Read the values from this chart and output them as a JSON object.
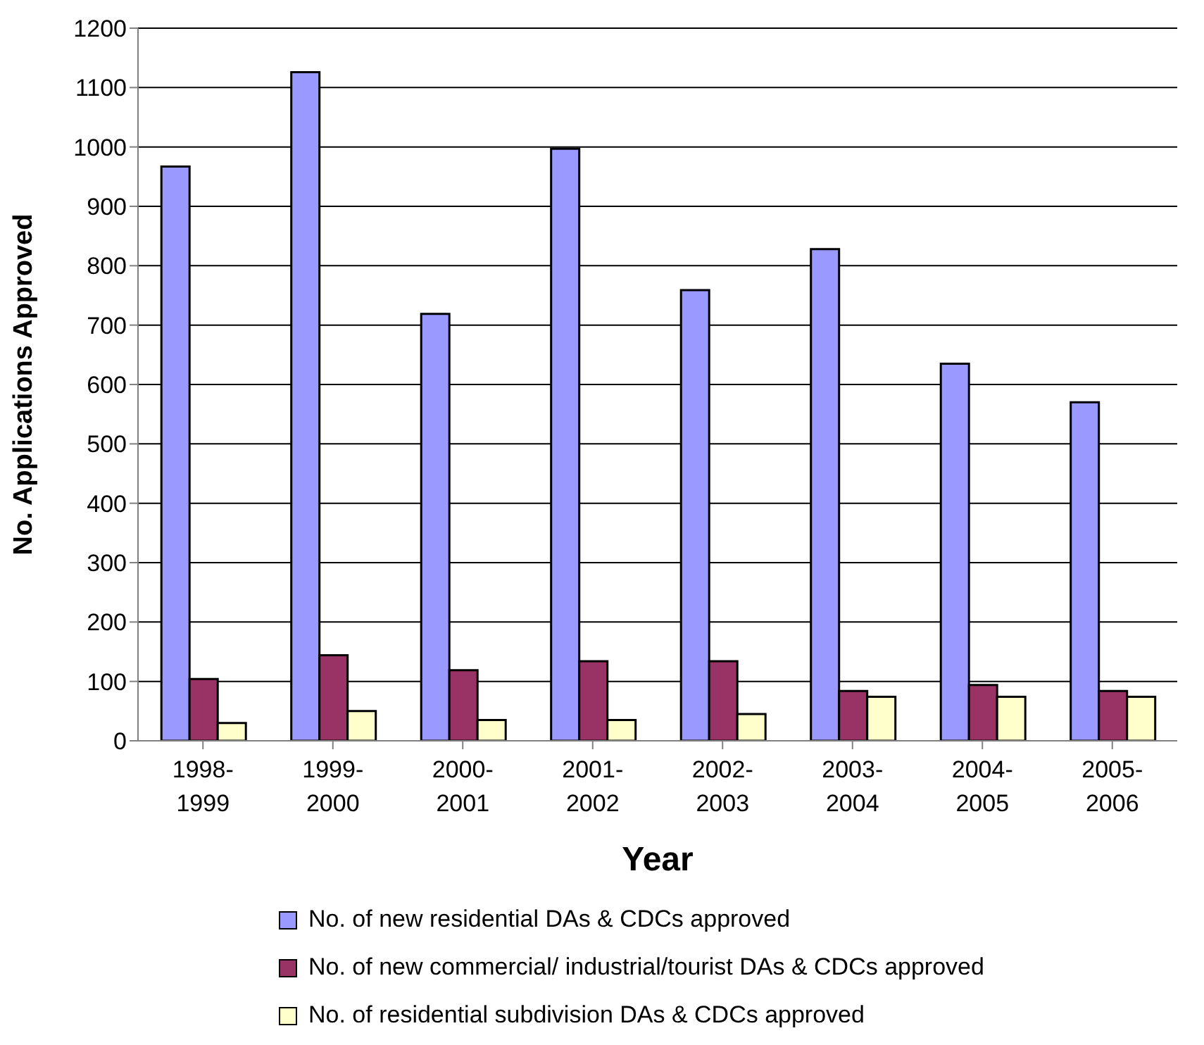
{
  "chart_data": {
    "type": "bar",
    "xlabel": "Year",
    "ylabel": "No. Applications Approved",
    "categories": [
      "1998-1999",
      "1999-2000",
      "2000-2001",
      "2001-2002",
      "2002-2003",
      "2003-2004",
      "2004-2005",
      "2005-2006"
    ],
    "series": [
      {
        "name": "No. of new residential DAs & CDCs approved",
        "color": "#9999ff",
        "values": [
          967,
          1126,
          719,
          997,
          759,
          828,
          635,
          570
        ]
      },
      {
        "name": "No. of new commercial/ industrial/tourist DAs & CDCs approved",
        "color": "#993366",
        "values": [
          104,
          144,
          119,
          134,
          134,
          84,
          94,
          84
        ]
      },
      {
        "name": "No. of residential subdivision DAs & CDCs approved",
        "color": "#ffffcc",
        "values": [
          30,
          50,
          35,
          35,
          45,
          74,
          74,
          74
        ]
      }
    ],
    "ylim": [
      0,
      1200
    ],
    "yticks": [
      0,
      100,
      200,
      300,
      400,
      500,
      600,
      700,
      800,
      900,
      1000,
      1100,
      1200
    ],
    "grid": "y",
    "legend": "bottom"
  }
}
